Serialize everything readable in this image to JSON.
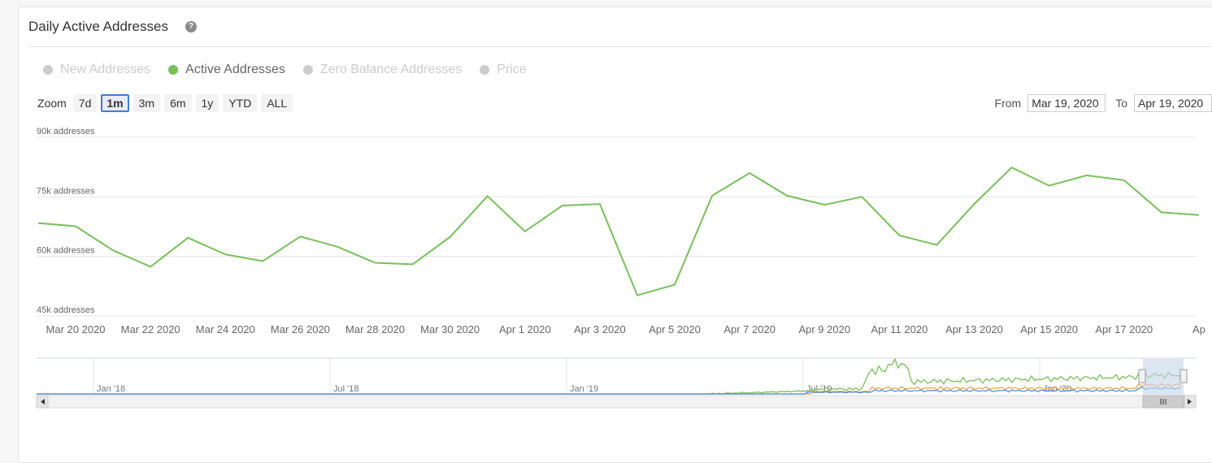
{
  "header": {
    "title": "Daily Active Addresses",
    "help_icon": "question-circle-icon"
  },
  "legend": [
    {
      "label": "New Addresses",
      "active": false
    },
    {
      "label": "Active Addresses",
      "active": true
    },
    {
      "label": "Zero Balance Addresses",
      "active": false
    },
    {
      "label": "Price",
      "active": false
    }
  ],
  "zoom": {
    "label": "Zoom",
    "options": [
      "7d",
      "1m",
      "3m",
      "6m",
      "1y",
      "YTD",
      "ALL"
    ],
    "selected": "1m"
  },
  "range": {
    "from_label": "From",
    "from_value": "Mar 19, 2020",
    "to_label": "To",
    "to_value": "Apr 19, 2020"
  },
  "colors": {
    "active": "#77c05a",
    "new": "#4a8bd8",
    "zero": "#f0a040",
    "navigator_mask": "#c5d4ea"
  },
  "chart_data": {
    "type": "line",
    "title": "",
    "y_tick_labels": [
      "45k addresses",
      "60k addresses",
      "75k addresses",
      "90k addresses"
    ],
    "y_ticks": [
      45000,
      60000,
      75000,
      90000
    ],
    "ylim": [
      45000,
      90000
    ],
    "x_tick_labels": [
      "Mar 20 2020",
      "Mar 22 2020",
      "Mar 24 2020",
      "Mar 26 2020",
      "Mar 28 2020",
      "Mar 30 2020",
      "Apr 1 2020",
      "Apr 3 2020",
      "Apr 5 2020",
      "Apr 7 2020",
      "Apr 9 2020",
      "Apr 11 2020",
      "Apr 13 2020",
      "Apr 15 2020",
      "Apr 17 2020",
      "Ap"
    ],
    "series": [
      {
        "name": "Active Addresses",
        "x": [
          "Mar 19 2020",
          "Mar 20 2020",
          "Mar 21 2020",
          "Mar 22 2020",
          "Mar 23 2020",
          "Mar 24 2020",
          "Mar 25 2020",
          "Mar 26 2020",
          "Mar 27 2020",
          "Mar 28 2020",
          "Mar 29 2020",
          "Mar 30 2020",
          "Mar 31 2020",
          "Apr 1 2020",
          "Apr 2 2020",
          "Apr 3 2020",
          "Apr 4 2020",
          "Apr 5 2020",
          "Apr 6 2020",
          "Apr 7 2020",
          "Apr 8 2020",
          "Apr 9 2020",
          "Apr 10 2020",
          "Apr 11 2020",
          "Apr 12 2020",
          "Apr 13 2020",
          "Apr 14 2020",
          "Apr 15 2020",
          "Apr 16 2020",
          "Apr 17 2020",
          "Apr 18 2020",
          "Apr 19 2020"
        ],
        "values": [
          68400,
          67600,
          61500,
          57400,
          64700,
          60500,
          58800,
          65000,
          62400,
          58400,
          58000,
          64900,
          75200,
          66300,
          72800,
          73200,
          50200,
          52900,
          75300,
          81000,
          75300,
          73000,
          75000,
          65300,
          62900,
          73200,
          82400,
          77800,
          80400,
          79200,
          71100,
          70400
        ]
      }
    ],
    "navigator": {
      "x_tick_labels": [
        "Jan '18",
        "Jul '18",
        "Jan '19",
        "Jul '19",
        "Jan '20"
      ]
    }
  }
}
